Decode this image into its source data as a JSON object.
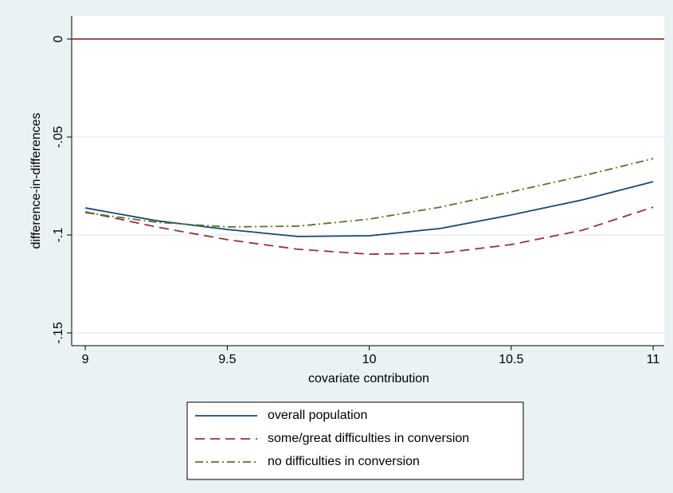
{
  "chart_data": {
    "type": "line",
    "x_label": "covariate contribution",
    "y_label": "difference-in-differences",
    "xlim": [
      8.952,
      11.039
    ],
    "ylim": [
      -0.1565,
      0.0118
    ],
    "xticks": [
      9,
      9.5,
      10,
      10.5,
      11
    ],
    "yticks": [
      0,
      {
        "value": -0.05,
        "label": "-.05"
      },
      {
        "value": -0.1,
        "label": "-.1"
      },
      {
        "value": -0.15,
        "label": "-.15"
      }
    ],
    "grid": true,
    "yline": {
      "value": 0,
      "color": "#90353b"
    },
    "legend": "bottom",
    "x": [
      9,
      9.25,
      9.5,
      9.75,
      10,
      10.25,
      10.5,
      10.75,
      11
    ],
    "series": [
      {
        "name": "overall population",
        "color": "#1a476f",
        "style": "solid",
        "values": [
          -0.0862,
          -0.0927,
          -0.0972,
          -0.1008,
          -0.1004,
          -0.0967,
          -0.0898,
          -0.0821,
          -0.0728
        ]
      },
      {
        "name": "some/great difficulties in conversion",
        "color": "#90353b",
        "style": "dash",
        "values": [
          -0.0882,
          -0.0959,
          -0.1024,
          -0.1073,
          -0.1098,
          -0.1093,
          -0.1049,
          -0.0976,
          -0.0858
        ]
      },
      {
        "name": "no difficulties in conversion",
        "color": "#55752f",
        "style": "dashdot",
        "values": [
          -0.0886,
          -0.0935,
          -0.0959,
          -0.0955,
          -0.0919,
          -0.0858,
          -0.078,
          -0.0699,
          -0.061
        ]
      }
    ]
  }
}
